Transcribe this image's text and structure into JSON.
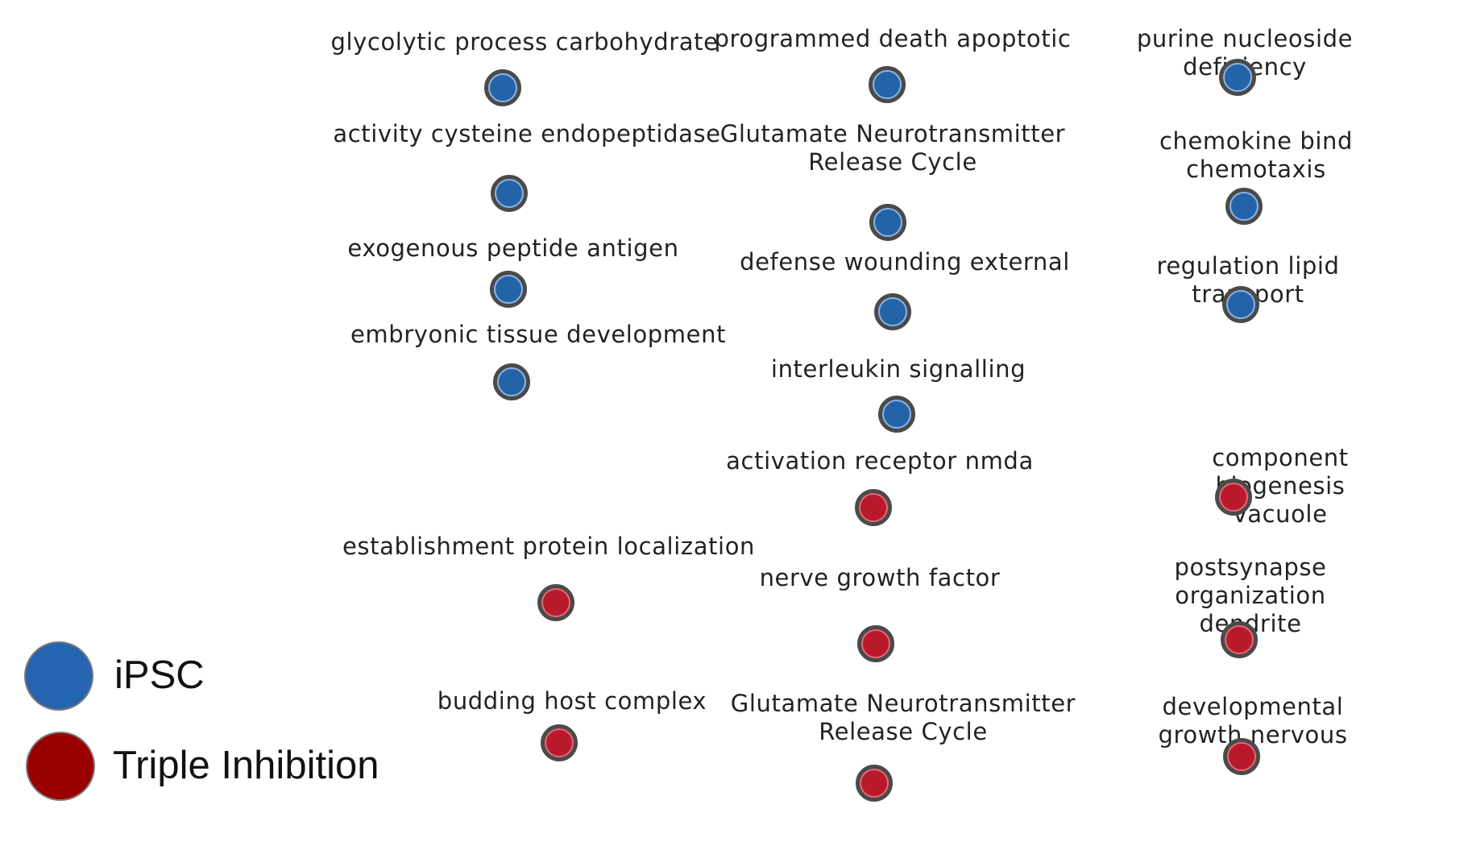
{
  "colors": {
    "ipsc": "#2363a8",
    "triple": "#b81a2c",
    "legend_ipsc": "#2564b0",
    "legend_triple": "#9b0000"
  },
  "legend": [
    {
      "label": "iPSC",
      "group": "ipsc"
    },
    {
      "label": "Triple Inhibition",
      "group": "triple"
    }
  ],
  "nodes": [
    {
      "label": "glycolytic process carbohydrate",
      "group": "ipsc"
    },
    {
      "label": "activity cysteine endopeptidase",
      "group": "ipsc"
    },
    {
      "label": "exogenous peptide antigen",
      "group": "ipsc"
    },
    {
      "label": "embryonic tissue development",
      "group": "ipsc"
    },
    {
      "label": "programmed death apoptotic",
      "group": "ipsc"
    },
    {
      "label": "Glutamate Neurotransmitter\nRelease Cycle",
      "group": "ipsc"
    },
    {
      "label": "defense wounding external",
      "group": "ipsc"
    },
    {
      "label": "interleukin signalling",
      "group": "ipsc"
    },
    {
      "label": "purine nucleoside deficiency",
      "group": "ipsc"
    },
    {
      "label": "chemokine bind chemotaxis",
      "group": "ipsc"
    },
    {
      "label": "regulation lipid transport",
      "group": "ipsc"
    },
    {
      "label": "activation receptor nmda",
      "group": "triple"
    },
    {
      "label": "nerve growth factor",
      "group": "triple"
    },
    {
      "label": "Glutamate Neurotransmitter\nRelease Cycle",
      "group": "triple"
    },
    {
      "label": "establishment protein localization",
      "group": "triple"
    },
    {
      "label": "budding host complex",
      "group": "triple"
    },
    {
      "label": "component biogenesis vacuole",
      "group": "triple"
    },
    {
      "label": "postsynapse organization\ndendrite",
      "group": "triple"
    },
    {
      "label": "developmental growth nervous",
      "group": "triple"
    }
  ]
}
